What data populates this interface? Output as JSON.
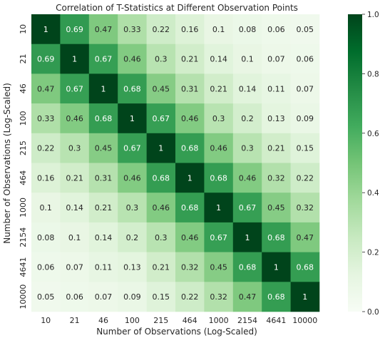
{
  "chart_data": {
    "type": "heatmap",
    "title": "Correlation of T-Statistics at Different Observation Points",
    "xlabel": "Number of Observations (Log-Scaled)",
    "ylabel": "Number of Observations (Log-Scaled)",
    "x_categories": [
      "10",
      "21",
      "46",
      "100",
      "215",
      "464",
      "1000",
      "2154",
      "4641",
      "10000"
    ],
    "y_categories": [
      "10",
      "21",
      "46",
      "100",
      "215",
      "464",
      "1000",
      "2154",
      "4641",
      "10000"
    ],
    "values": [
      [
        1,
        0.69,
        0.47,
        0.33,
        0.22,
        0.16,
        0.1,
        0.08,
        0.06,
        0.05
      ],
      [
        0.69,
        1,
        0.67,
        0.46,
        0.3,
        0.21,
        0.14,
        0.1,
        0.07,
        0.06
      ],
      [
        0.47,
        0.67,
        1,
        0.68,
        0.45,
        0.31,
        0.21,
        0.14,
        0.11,
        0.07
      ],
      [
        0.33,
        0.46,
        0.68,
        1,
        0.67,
        0.46,
        0.3,
        0.2,
        0.13,
        0.09
      ],
      [
        0.22,
        0.3,
        0.45,
        0.67,
        1,
        0.68,
        0.46,
        0.3,
        0.21,
        0.15
      ],
      [
        0.16,
        0.21,
        0.31,
        0.46,
        0.68,
        1,
        0.68,
        0.46,
        0.32,
        0.22
      ],
      [
        0.1,
        0.14,
        0.21,
        0.3,
        0.46,
        0.68,
        1,
        0.67,
        0.45,
        0.32
      ],
      [
        0.08,
        0.1,
        0.14,
        0.2,
        0.3,
        0.46,
        0.67,
        1,
        0.68,
        0.47
      ],
      [
        0.06,
        0.07,
        0.11,
        0.13,
        0.21,
        0.32,
        0.45,
        0.68,
        1,
        0.68
      ],
      [
        0.05,
        0.06,
        0.07,
        0.09,
        0.15,
        0.22,
        0.32,
        0.47,
        0.68,
        1
      ]
    ],
    "colorbar": {
      "min": 0.0,
      "max": 1.0,
      "ticks": [
        "0.0",
        "0.2",
        "0.4",
        "0.6",
        "0.8",
        "1.0"
      ],
      "colormap": "Greens"
    }
  }
}
